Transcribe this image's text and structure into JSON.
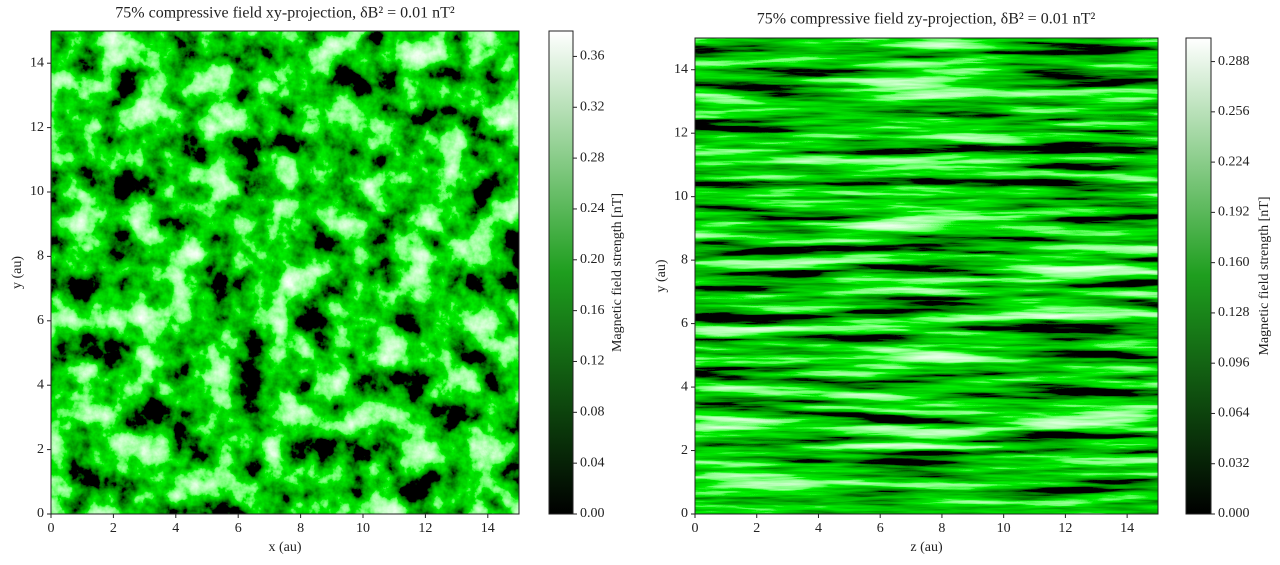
{
  "chart_data": [
    {
      "type": "heatmap",
      "title": "75% compressive field xy-projection, δB² = 0.01 nT²",
      "x_label": "x (au)",
      "y_label": "y (au)",
      "colorbar_label": "Magnetic field strength [nT]",
      "xlim": [
        0,
        15
      ],
      "ylim": [
        0,
        15
      ],
      "xticks": [
        0,
        2,
        4,
        6,
        8,
        10,
        12,
        14
      ],
      "yticks": [
        0,
        2,
        4,
        6,
        8,
        10,
        12,
        14
      ],
      "clim": [
        0,
        0.38
      ],
      "cticks": [
        {
          "value": 0,
          "label": "0.00"
        },
        {
          "value": 0.04,
          "label": "0.04"
        },
        {
          "value": 0.08,
          "label": "0.08"
        },
        {
          "value": 0.12,
          "label": "0.12"
        },
        {
          "value": 0.16,
          "label": "0.16"
        },
        {
          "value": 0.2,
          "label": "0.20"
        },
        {
          "value": 0.24,
          "label": "0.24"
        },
        {
          "value": 0.28,
          "label": "0.28"
        },
        {
          "value": 0.32,
          "label": "0.32"
        },
        {
          "value": 0.36,
          "label": "0.36"
        }
      ],
      "colormap": [
        "#000000",
        "#1e9e1e",
        "#ffffff"
      ]
    },
    {
      "type": "heatmap",
      "title": "75% compressive field zy-projection, δB² = 0.01 nT²",
      "x_label": "z (au)",
      "y_label": "y (au)",
      "colorbar_label": "Magnetic field strength [nT]",
      "xlim": [
        0,
        15
      ],
      "ylim": [
        0,
        15
      ],
      "xticks": [
        0,
        2,
        4,
        6,
        8,
        10,
        12,
        14
      ],
      "yticks": [
        0,
        2,
        4,
        6,
        8,
        10,
        12,
        14
      ],
      "clim": [
        0,
        0.303
      ],
      "cticks": [
        {
          "value": 0,
          "label": "0.000"
        },
        {
          "value": 0.032,
          "label": "0.032"
        },
        {
          "value": 0.064,
          "label": "0.064"
        },
        {
          "value": 0.096,
          "label": "0.096"
        },
        {
          "value": 0.128,
          "label": "0.128"
        },
        {
          "value": 0.16,
          "label": "0.160"
        },
        {
          "value": 0.192,
          "label": "0.192"
        },
        {
          "value": 0.224,
          "label": "0.224"
        },
        {
          "value": 0.256,
          "label": "0.256"
        },
        {
          "value": 0.288,
          "label": "0.288"
        }
      ],
      "colormap": [
        "#000000",
        "#1e9e1e",
        "#ffffff"
      ]
    }
  ]
}
